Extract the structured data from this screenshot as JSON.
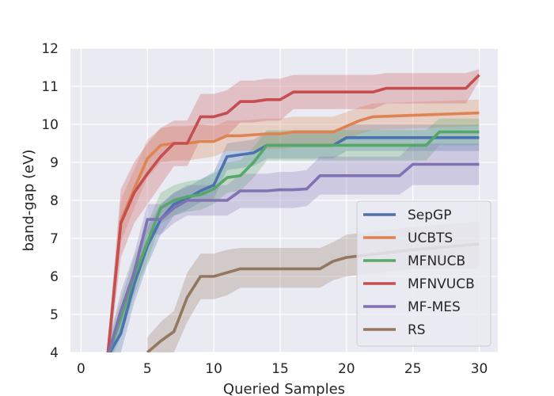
{
  "chart_data": {
    "type": "line",
    "title": "",
    "xlabel": "Queried Samples",
    "ylabel": "band-gap (eV)",
    "xlim": [
      -0.8,
      31.4
    ],
    "ylim": [
      4,
      12
    ],
    "xticks": [
      0,
      5,
      10,
      15,
      20,
      25,
      30
    ],
    "yticks": [
      4,
      5,
      6,
      7,
      8,
      9,
      10,
      11,
      12
    ],
    "grid": true,
    "legend_position": "lower-right",
    "series": [
      {
        "name": "SepGP",
        "color": "#4c72b0",
        "points": [
          [
            2,
            3.9
          ],
          [
            3,
            4.5
          ],
          [
            4,
            5.8
          ],
          [
            5,
            6.8
          ],
          [
            6,
            7.5
          ],
          [
            7,
            7.9
          ],
          [
            8,
            8.05
          ],
          [
            9,
            8.25
          ],
          [
            10,
            8.4
          ],
          [
            11,
            9.15
          ],
          [
            12,
            9.2
          ],
          [
            13,
            9.25
          ],
          [
            14,
            9.45
          ],
          [
            15,
            9.45
          ],
          [
            19,
            9.45
          ],
          [
            20,
            9.65
          ],
          [
            30,
            9.65
          ]
        ],
        "band": [
          [
            2,
            3.6,
            4.1
          ],
          [
            3,
            4.0,
            5.0
          ],
          [
            4,
            5.3,
            6.3
          ],
          [
            5,
            6.3,
            7.3
          ],
          [
            6,
            7.1,
            7.9
          ],
          [
            7,
            7.6,
            8.2
          ],
          [
            8,
            7.75,
            8.35
          ],
          [
            9,
            7.95,
            8.55
          ],
          [
            10,
            8.05,
            8.75
          ],
          [
            11,
            8.8,
            9.5
          ],
          [
            12,
            8.85,
            9.55
          ],
          [
            13,
            8.9,
            9.6
          ],
          [
            14,
            9.1,
            9.8
          ],
          [
            15,
            9.1,
            9.8
          ],
          [
            19,
            9.1,
            9.8
          ],
          [
            20,
            9.3,
            10.0
          ],
          [
            30,
            9.3,
            10.0
          ]
        ]
      },
      {
        "name": "UCBTS",
        "color": "#dd8452",
        "points": [
          [
            2,
            3.9
          ],
          [
            3,
            7.45
          ],
          [
            4,
            8.3
          ],
          [
            5,
            9.1
          ],
          [
            6,
            9.45
          ],
          [
            7,
            9.5
          ],
          [
            8,
            9.5
          ],
          [
            9,
            9.55
          ],
          [
            10,
            9.55
          ],
          [
            11,
            9.7
          ],
          [
            12,
            9.7
          ],
          [
            14,
            9.75
          ],
          [
            15,
            9.75
          ],
          [
            16,
            9.8
          ],
          [
            19,
            9.8
          ],
          [
            21,
            10.1
          ],
          [
            22,
            10.2
          ],
          [
            30,
            10.3
          ]
        ],
        "band": [
          [
            2,
            3.6,
            4.2
          ],
          [
            3,
            6.9,
            8.0
          ],
          [
            4,
            7.8,
            8.8
          ],
          [
            5,
            8.6,
            9.6
          ],
          [
            6,
            9.0,
            9.9
          ],
          [
            7,
            9.05,
            9.95
          ],
          [
            8,
            9.05,
            9.95
          ],
          [
            9,
            9.1,
            10.0
          ],
          [
            10,
            9.15,
            9.95
          ],
          [
            11,
            9.3,
            10.1
          ],
          [
            12,
            9.3,
            10.1
          ],
          [
            14,
            9.35,
            10.15
          ],
          [
            15,
            9.35,
            10.15
          ],
          [
            16,
            9.4,
            10.2
          ],
          [
            19,
            9.4,
            10.2
          ],
          [
            21,
            9.75,
            10.45
          ],
          [
            22,
            9.85,
            10.55
          ],
          [
            30,
            9.95,
            10.65
          ]
        ]
      },
      {
        "name": "MFNUCB",
        "color": "#55a868",
        "points": [
          [
            2,
            3.9
          ],
          [
            3,
            4.9
          ],
          [
            4,
            6.0
          ],
          [
            5,
            6.9
          ],
          [
            6,
            7.8
          ],
          [
            7,
            8.0
          ],
          [
            8,
            8.1
          ],
          [
            9,
            8.15
          ],
          [
            10,
            8.3
          ],
          [
            11,
            8.6
          ],
          [
            12,
            8.65
          ],
          [
            13,
            9.0
          ],
          [
            14,
            9.45
          ],
          [
            18,
            9.45
          ],
          [
            19,
            9.45
          ],
          [
            26,
            9.45
          ],
          [
            27,
            9.8
          ],
          [
            30,
            9.8
          ]
        ],
        "band": [
          [
            2,
            3.6,
            4.2
          ],
          [
            3,
            4.4,
            5.4
          ],
          [
            4,
            5.5,
            6.5
          ],
          [
            5,
            6.4,
            7.4
          ],
          [
            6,
            7.4,
            8.2
          ],
          [
            7,
            7.6,
            8.4
          ],
          [
            8,
            7.7,
            8.5
          ],
          [
            9,
            7.75,
            8.55
          ],
          [
            10,
            7.9,
            8.7
          ],
          [
            11,
            8.2,
            9.0
          ],
          [
            12,
            8.25,
            9.05
          ],
          [
            13,
            8.6,
            9.4
          ],
          [
            14,
            9.05,
            9.85
          ],
          [
            18,
            9.05,
            9.85
          ],
          [
            19,
            9.05,
            9.85
          ],
          [
            26,
            9.05,
            9.85
          ],
          [
            27,
            9.45,
            10.15
          ],
          [
            30,
            9.45,
            10.15
          ]
        ]
      },
      {
        "name": "MFNVUCB",
        "color": "#c44e52",
        "points": [
          [
            2,
            3.9
          ],
          [
            3,
            7.4
          ],
          [
            4,
            8.2
          ],
          [
            5,
            8.7
          ],
          [
            6,
            9.15
          ],
          [
            7,
            9.5
          ],
          [
            8,
            9.5
          ],
          [
            9,
            10.2
          ],
          [
            10,
            10.2
          ],
          [
            11,
            10.3
          ],
          [
            12,
            10.6
          ],
          [
            13,
            10.6
          ],
          [
            14,
            10.65
          ],
          [
            15,
            10.65
          ],
          [
            16,
            10.85
          ],
          [
            22,
            10.85
          ],
          [
            23,
            10.95
          ],
          [
            29,
            10.95
          ],
          [
            30,
            11.3
          ]
        ],
        "band": [
          [
            2,
            3.6,
            4.2
          ],
          [
            3,
            6.5,
            8.3
          ],
          [
            4,
            7.4,
            9.0
          ],
          [
            5,
            7.9,
            9.5
          ],
          [
            6,
            8.4,
            9.9
          ],
          [
            7,
            8.9,
            10.1
          ],
          [
            8,
            8.9,
            10.1
          ],
          [
            9,
            9.6,
            10.8
          ],
          [
            10,
            9.6,
            10.8
          ],
          [
            11,
            9.7,
            10.9
          ],
          [
            12,
            10.05,
            11.15
          ],
          [
            13,
            10.05,
            11.15
          ],
          [
            14,
            10.1,
            11.2
          ],
          [
            15,
            10.1,
            11.2
          ],
          [
            16,
            10.4,
            11.3
          ],
          [
            22,
            10.4,
            11.3
          ],
          [
            23,
            10.55,
            11.35
          ],
          [
            29,
            10.55,
            11.35
          ],
          [
            30,
            11.15,
            11.45
          ]
        ]
      },
      {
        "name": "MF-MES",
        "color": "#8172b3",
        "points": [
          [
            2,
            3.9
          ],
          [
            3,
            5.1
          ],
          [
            4,
            6.1
          ],
          [
            5,
            7.5
          ],
          [
            6,
            7.5
          ],
          [
            7,
            7.8
          ],
          [
            8,
            8.0
          ],
          [
            11,
            8.0
          ],
          [
            12,
            8.25
          ],
          [
            14,
            8.25
          ],
          [
            15,
            8.28
          ],
          [
            16,
            8.28
          ],
          [
            17,
            8.3
          ],
          [
            18,
            8.65
          ],
          [
            24,
            8.65
          ],
          [
            25,
            8.95
          ],
          [
            30,
            8.95
          ]
        ],
        "band": [
          [
            2,
            3.6,
            4.2
          ],
          [
            3,
            4.6,
            5.6
          ],
          [
            4,
            5.6,
            6.6
          ],
          [
            5,
            7.1,
            7.9
          ],
          [
            6,
            7.1,
            7.9
          ],
          [
            7,
            7.4,
            8.2
          ],
          [
            8,
            7.6,
            8.4
          ],
          [
            11,
            7.6,
            8.4
          ],
          [
            12,
            7.8,
            8.7
          ],
          [
            14,
            7.8,
            8.7
          ],
          [
            15,
            7.8,
            8.75
          ],
          [
            16,
            7.8,
            8.75
          ],
          [
            17,
            7.85,
            8.8
          ],
          [
            18,
            8.15,
            9.15
          ],
          [
            24,
            8.15,
            9.15
          ],
          [
            25,
            8.4,
            9.5
          ],
          [
            30,
            8.4,
            9.5
          ]
        ]
      },
      {
        "name": "RS",
        "color": "#937860",
        "points": [
          [
            5,
            4.0
          ],
          [
            6,
            4.3
          ],
          [
            7,
            4.55
          ],
          [
            8,
            5.45
          ],
          [
            9,
            6.0
          ],
          [
            10,
            6.0
          ],
          [
            11,
            6.1
          ],
          [
            12,
            6.2
          ],
          [
            18,
            6.2
          ],
          [
            19,
            6.4
          ],
          [
            20,
            6.5
          ],
          [
            25,
            6.7
          ],
          [
            30,
            6.85
          ]
        ],
        "band": [
          [
            5,
            3.7,
            4.4
          ],
          [
            6,
            3.8,
            4.8
          ],
          [
            7,
            4.0,
            5.1
          ],
          [
            8,
            4.8,
            6.1
          ],
          [
            9,
            5.4,
            6.6
          ],
          [
            10,
            5.4,
            6.6
          ],
          [
            11,
            5.5,
            6.7
          ],
          [
            12,
            5.7,
            6.75
          ],
          [
            18,
            5.7,
            6.75
          ],
          [
            19,
            5.9,
            6.9
          ],
          [
            20,
            6.0,
            7.1
          ],
          [
            25,
            6.2,
            7.3
          ],
          [
            30,
            6.2,
            7.45
          ]
        ]
      }
    ]
  }
}
